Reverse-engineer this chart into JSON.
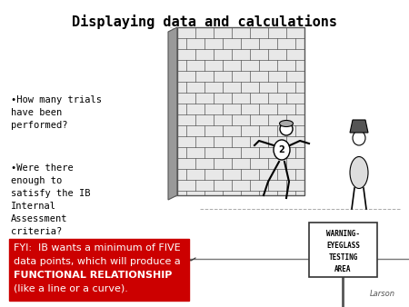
{
  "title": "Displaying data and calculations",
  "title_fontsize": 11,
  "title_fontweight": "bold",
  "title_font": "monospace",
  "background_color": "#ffffff",
  "bullet1_line1": "•How many trials",
  "bullet1_line2": "have been",
  "bullet1_line3": "performed?",
  "bullet2_line1": "•Were there",
  "bullet2_line2": "enough to",
  "bullet2_line3": "satisfy the IB",
  "bullet2_line4": "Internal",
  "bullet2_line5": "Assessment",
  "bullet2_line6": "criteria?",
  "fyi_text_line1": "FYI:  IB wants a minimum of FIVE",
  "fyi_text_line2": "data points, which will produce a",
  "fyi_text_bold": "FUNCTIONAL RELATIONSHIP",
  "fyi_text_line4": "(like a line or a curve).",
  "fyi_bg_color": "#cc0000",
  "fyi_text_color": "#ffffff",
  "bullet_font": "monospace",
  "bullet_fontsize": 7.5,
  "fyi_fontsize": 8.0,
  "text_color": "#000000",
  "brick_color": "#cccccc",
  "brick_line_color": "#555555",
  "cartoon_bg": "#f8f8f8"
}
